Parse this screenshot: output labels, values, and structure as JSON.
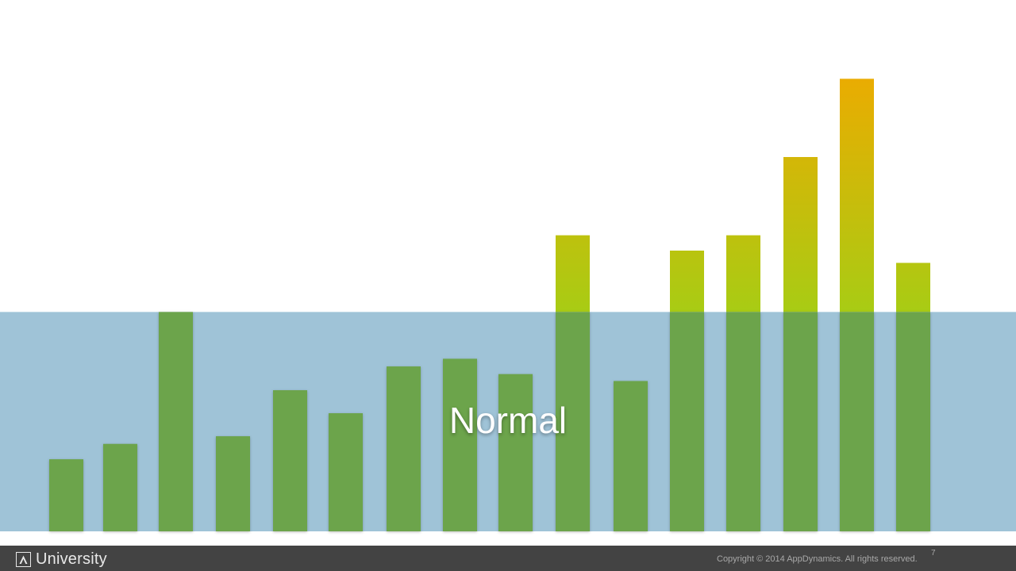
{
  "chart_data": {
    "type": "bar",
    "values": [
      94,
      114,
      286,
      124,
      184,
      154,
      215,
      225,
      205,
      386,
      196,
      366,
      386,
      488,
      590,
      350
    ],
    "band": {
      "label": "Normal",
      "from": 0,
      "to": 286
    },
    "ylim": [
      0,
      610
    ],
    "colors": {
      "normal_bar": "#6ca44c",
      "band_fill": "#9fc3d7",
      "gradient_low": "#a8cc14",
      "gradient_high": "#eeaa00"
    }
  },
  "footer": {
    "logo_text": "University",
    "copyright": "Copyright © 2014 AppDynamics. All rights reserved.",
    "page_number": "7"
  }
}
